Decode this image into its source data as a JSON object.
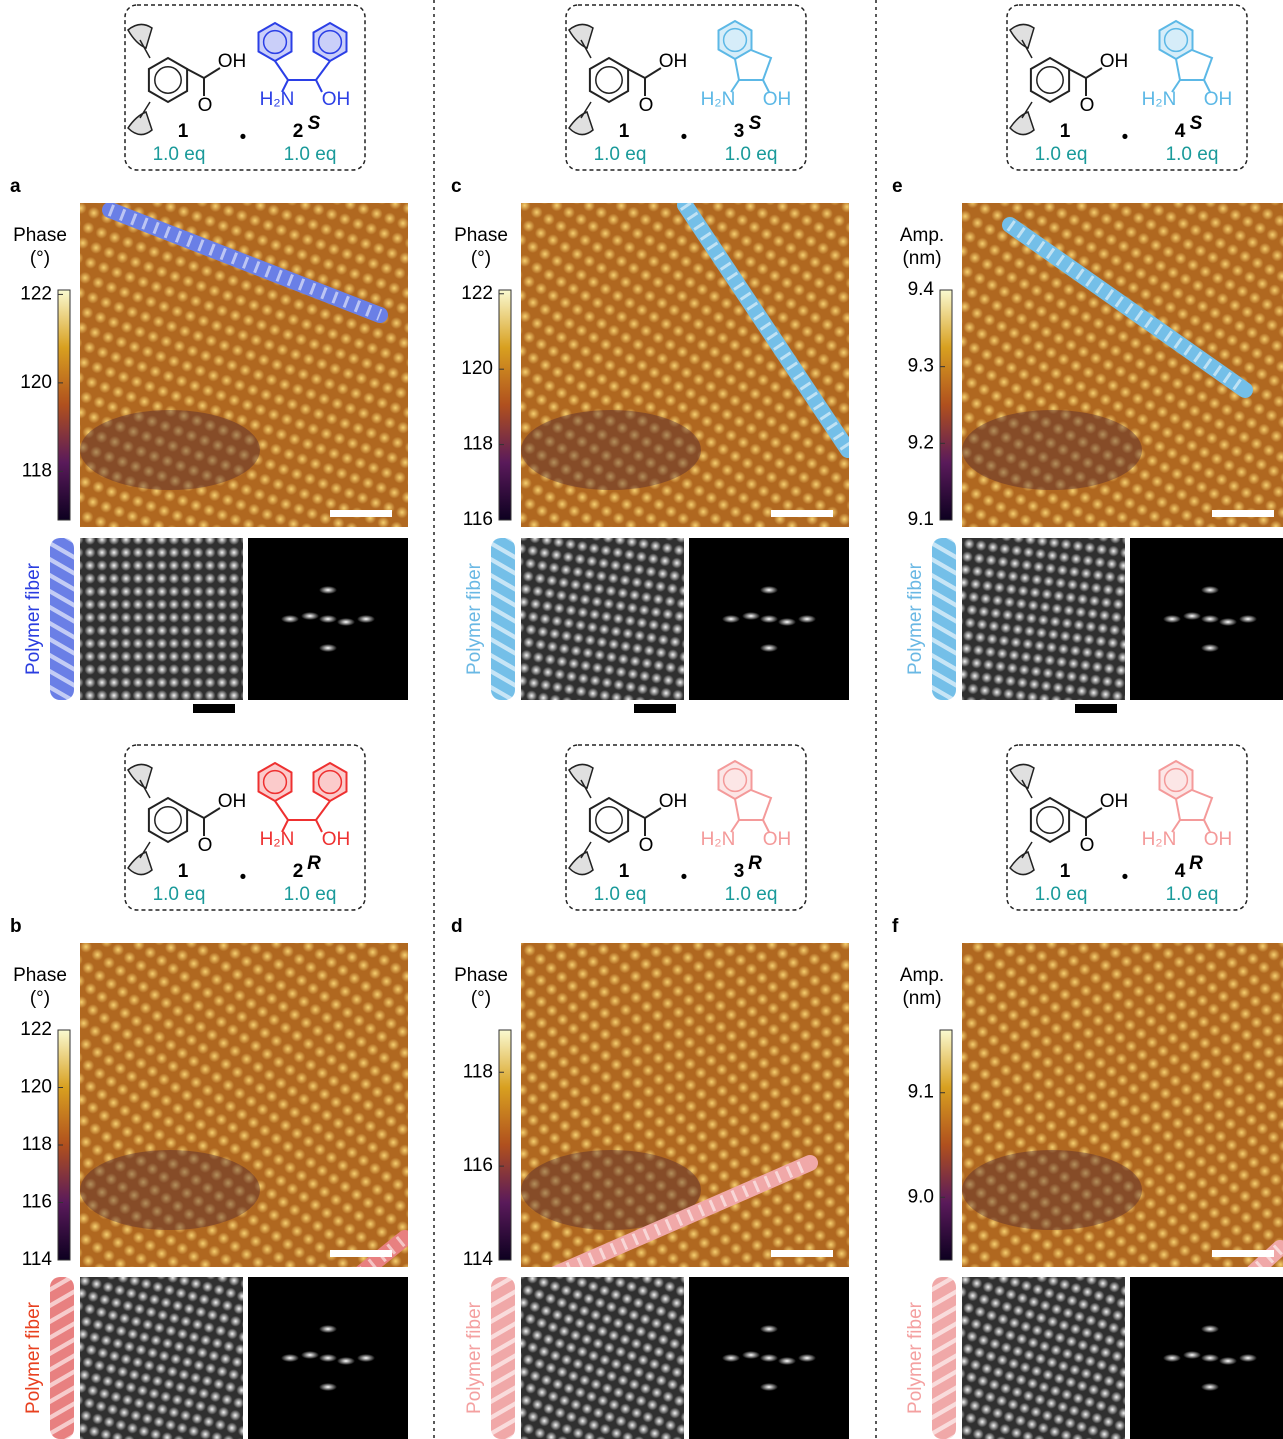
{
  "panels": [
    {
      "label": "a",
      "colorbar": {
        "title": [
          "Phase",
          "(°)"
        ],
        "lim": [
          116.9,
          122.1
        ],
        "ticks": [
          122,
          120,
          118
        ]
      },
      "fiber_label": "Polymer fiber",
      "fiber_label_color": "#2a3de0",
      "fiber_color": "#6a7fe6",
      "compound": {
        "acid_labels": [
          "OH",
          "O"
        ],
        "acid_number": "1",
        "dot": "•",
        "partner_labels": [
          "H₂N",
          "OH"
        ],
        "partner_number": "2",
        "partner_config": "S",
        "equivalents": [
          "1.0 eq",
          "1.0 eq"
        ],
        "color": "#2b3fe6",
        "eq_color": "#1a9a9a"
      }
    },
    {
      "label": "b",
      "colorbar": {
        "title": [
          "Phase",
          "(°)"
        ],
        "lim": [
          114,
          122
        ],
        "ticks": [
          122,
          120,
          118,
          116,
          114
        ]
      },
      "fiber_label": "Polymer fiber",
      "fiber_label_color": "#e8401f",
      "fiber_color": "#e88080",
      "compound": {
        "acid_labels": [
          "OH",
          "O"
        ],
        "acid_number": "1",
        "dot": "•",
        "partner_labels": [
          "H₂N",
          "OH"
        ],
        "partner_number": "2",
        "partner_config": "R",
        "equivalents": [
          "1.0 eq",
          "1.0 eq"
        ],
        "color": "#ee3030",
        "eq_color": "#1a9a9a"
      }
    },
    {
      "label": "c",
      "colorbar": {
        "title": [
          "Phase",
          "(°)"
        ],
        "lim": [
          116,
          122.1
        ],
        "ticks": [
          122,
          120,
          118,
          116
        ]
      },
      "fiber_label": "Polymer fiber",
      "fiber_label_color": "#6ab8e4",
      "fiber_color": "#74bfe8",
      "compound": {
        "acid_labels": [
          "OH",
          "O"
        ],
        "acid_number": "1",
        "dot": "•",
        "partner_labels": [
          "H₂N",
          "OH"
        ],
        "partner_number": "3",
        "partner_config": "S",
        "equivalents": [
          "1.0 eq",
          "1.0 eq"
        ],
        "color": "#5cb8e6",
        "eq_color": "#1a9a9a"
      }
    },
    {
      "label": "d",
      "colorbar": {
        "title": [
          "Phase",
          "(°)"
        ],
        "lim": [
          114,
          118.9
        ],
        "ticks": [
          118,
          116,
          114
        ]
      },
      "fiber_label": "Polymer fiber",
      "fiber_label_color": "#f4a0a0",
      "fiber_color": "#f0a8a8",
      "compound": {
        "acid_labels": [
          "OH",
          "O"
        ],
        "acid_number": "1",
        "dot": "•",
        "partner_labels": [
          "H₂N",
          "OH"
        ],
        "partner_number": "3",
        "partner_config": "R",
        "equivalents": [
          "1.0 eq",
          "1.0 eq"
        ],
        "color": "#f49a9a",
        "eq_color": "#1a9a9a"
      }
    },
    {
      "label": "e",
      "colorbar": {
        "title": [
          "Amp.",
          "(nm)"
        ],
        "lim": [
          9.1,
          9.4
        ],
        "ticks": [
          9.4,
          9.3,
          9.2,
          9.1
        ]
      },
      "fiber_label": "Polymer fiber",
      "fiber_label_color": "#6ab8e4",
      "fiber_color": "#74bfe8",
      "compound": {
        "acid_labels": [
          "OH",
          "O"
        ],
        "acid_number": "1",
        "dot": "•",
        "partner_labels": [
          "H₂N",
          "OH"
        ],
        "partner_number": "4",
        "partner_config": "S",
        "equivalents": [
          "1.0 eq",
          "1.0 eq"
        ],
        "color": "#5cb8e6",
        "eq_color": "#1a9a9a"
      }
    },
    {
      "label": "f",
      "colorbar": {
        "title": [
          "Amp.",
          "(nm)"
        ],
        "lim": [
          8.94,
          9.16
        ],
        "ticks": [
          9.1,
          {
            "value": 9,
            "label": "9.0"
          }
        ]
      },
      "fiber_label": "Polymer fiber",
      "fiber_label_color": "#f4a0a0",
      "fiber_color": "#f0a8a8",
      "compound": {
        "acid_labels": [
          "OH",
          "O"
        ],
        "acid_number": "1",
        "dot": "•",
        "partner_labels": [
          "H₂N",
          "OH"
        ],
        "partner_number": "4",
        "partner_config": "R",
        "equivalents": [
          "1.0 eq",
          "1.0 eq"
        ],
        "color": "#f49a9a",
        "eq_color": "#1a9a9a"
      }
    }
  ]
}
